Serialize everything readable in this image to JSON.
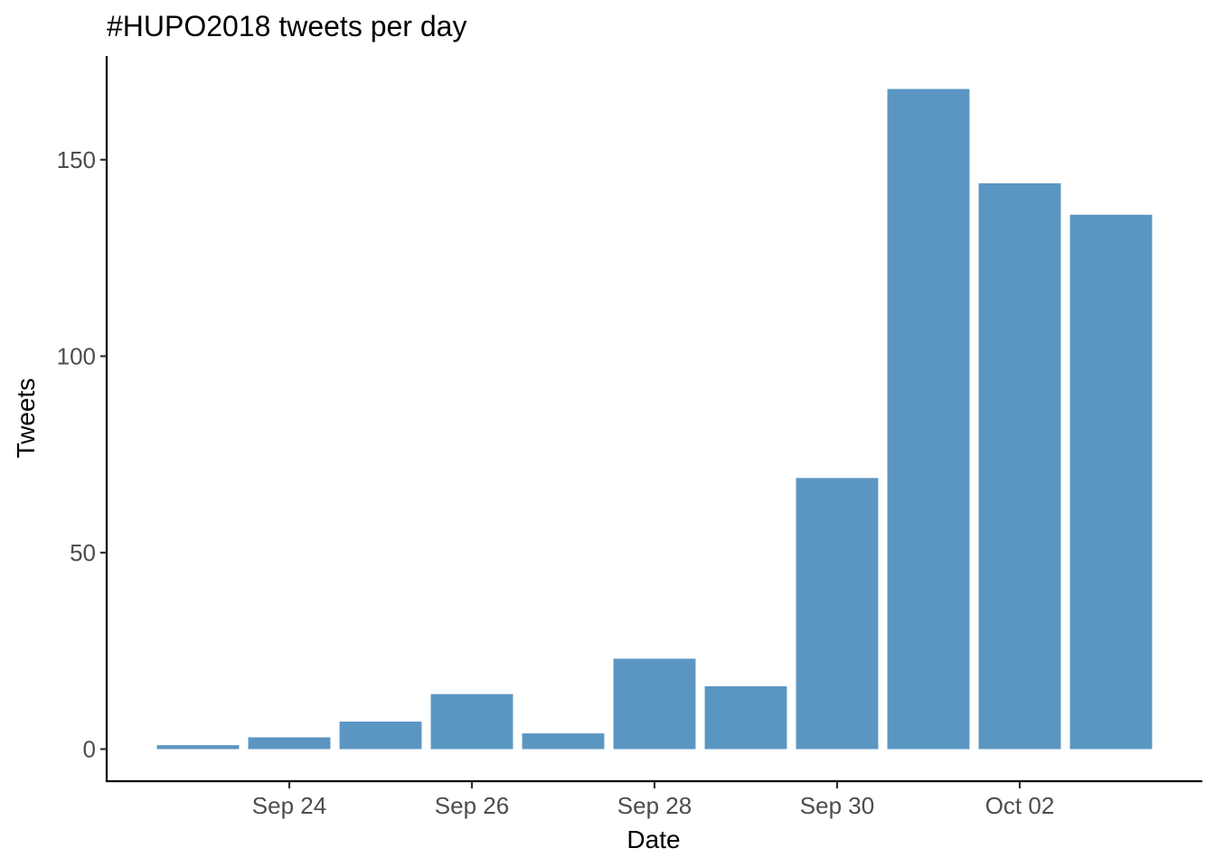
{
  "chart_data": {
    "type": "bar",
    "title": "#HUPO2018 tweets per day",
    "xlabel": "Date",
    "ylabel": "Tweets",
    "x": [
      "2018-09-23",
      "2018-09-24",
      "2018-09-25",
      "2018-09-26",
      "2018-09-27",
      "2018-09-28",
      "2018-09-29",
      "2018-09-30",
      "2018-10-01",
      "2018-10-02",
      "2018-10-03"
    ],
    "values": [
      1,
      3,
      7,
      14,
      4,
      23,
      16,
      69,
      168,
      144,
      136
    ],
    "bar_color": "#5b96c3",
    "ylim": [
      -8.4,
      176.4
    ],
    "xlim": [
      "2018-09-22",
      "2018-10-04"
    ],
    "y_ticks": [
      {
        "value": 0,
        "label": "0"
      },
      {
        "value": 50,
        "label": "50"
      },
      {
        "value": 100,
        "label": "100"
      },
      {
        "value": 150,
        "label": "150"
      }
    ],
    "x_ticks": [
      {
        "date": "2018-09-24",
        "label": "Sep 24"
      },
      {
        "date": "2018-09-26",
        "label": "Sep 26"
      },
      {
        "date": "2018-09-28",
        "label": "Sep 28"
      },
      {
        "date": "2018-09-30",
        "label": "Sep 30"
      },
      {
        "date": "2018-10-02",
        "label": "Oct 02"
      }
    ],
    "grid": false,
    "legend": "none"
  }
}
